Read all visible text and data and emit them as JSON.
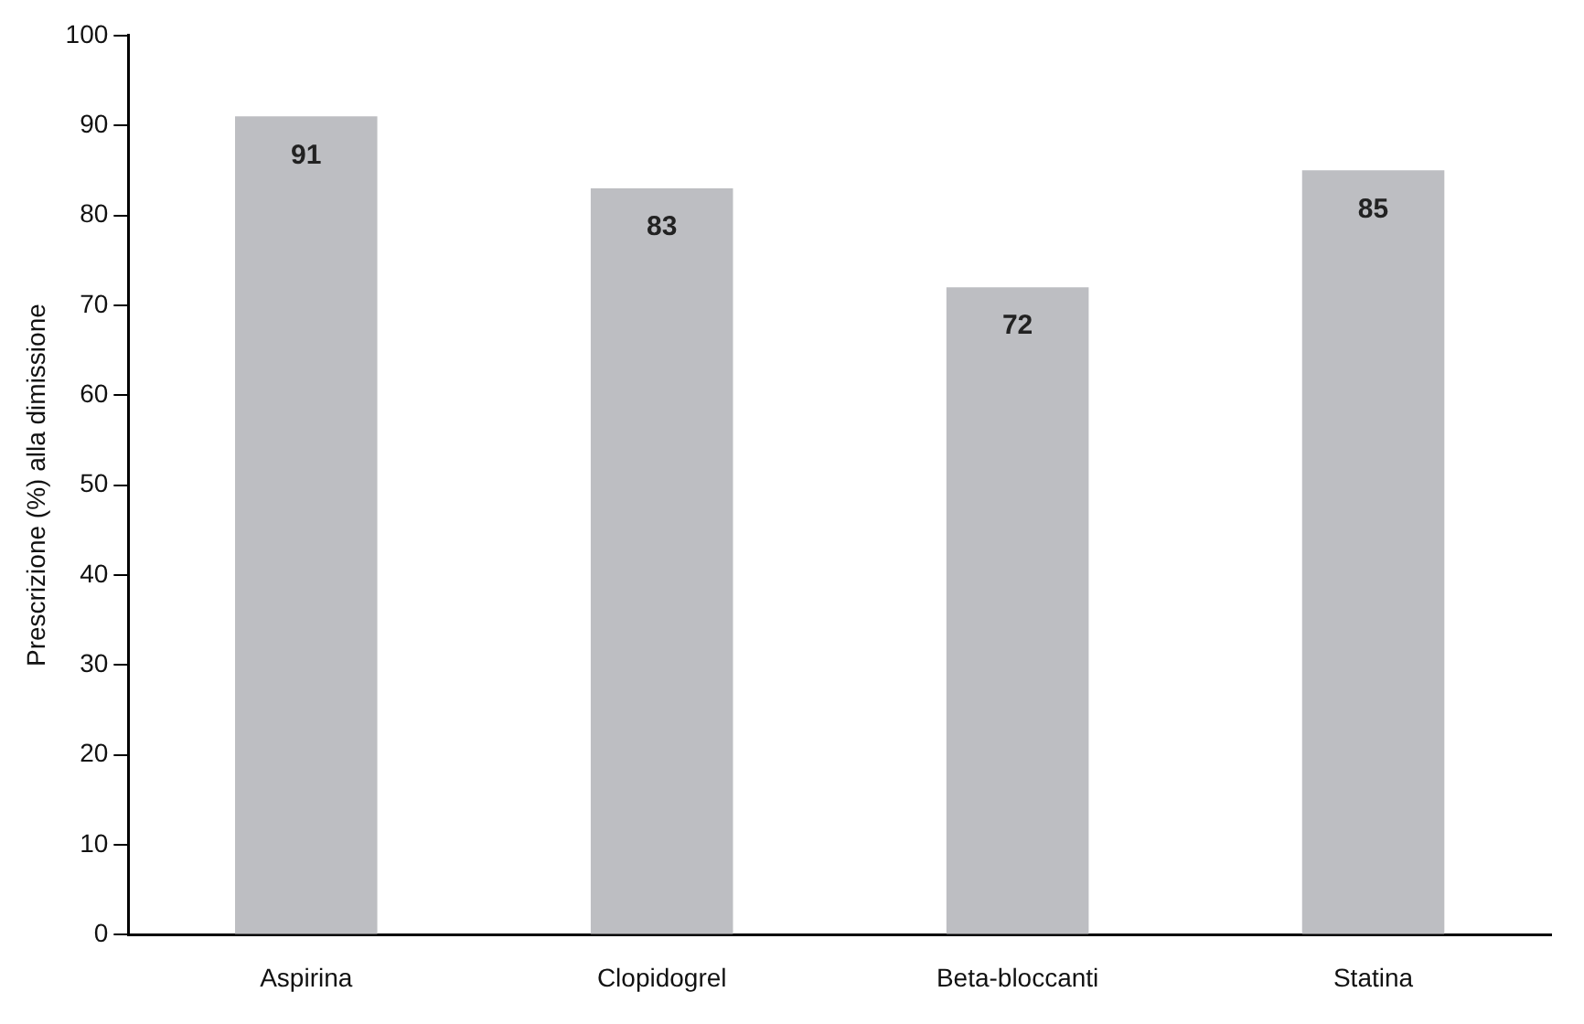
{
  "chart_data": {
    "type": "bar",
    "ylabel": "Prescrizione (%) alla dimissione",
    "categories": [
      "Aspirina",
      "Clopidogrel",
      "Beta-bloccanti",
      "Statina"
    ],
    "values": [
      91,
      83,
      72,
      85
    ],
    "color": "#bdbec2",
    "ylim": [
      0,
      100
    ],
    "yticks": [
      0,
      10,
      20,
      30,
      40,
      50,
      60,
      70,
      80,
      90,
      100
    ],
    "grid": false,
    "legend": false,
    "data_labels": true
  }
}
